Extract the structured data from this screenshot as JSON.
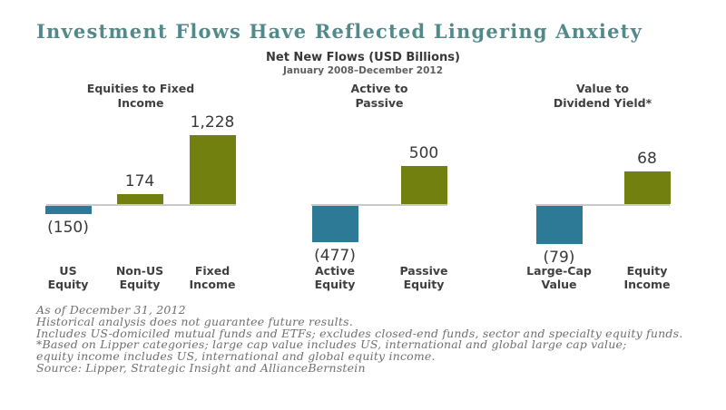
{
  "page": {
    "title": "Investment Flows Have Reflected Lingering Anxiety"
  },
  "colors": {
    "title_teal": "#52898b",
    "bar_negative_teal": "#2d7a96",
    "bar_positive_olive": "#71800f",
    "baseline_gray": "#c9c9c9",
    "text_dark": "#383838",
    "footnote_gray": "#6f6f6f"
  },
  "chart_data": {
    "type": "bar",
    "title": "Net New Flows (USD Billions)",
    "subtitle": "January 2008–December 2012",
    "unit": "USD Billions",
    "legend": "none",
    "grid": "off",
    "groups": [
      {
        "label": "Equities to Fixed Income",
        "label_lines": [
          "Equities to Fixed",
          "Income"
        ],
        "categories": [
          "US Equity",
          "Non-US Equity",
          "Fixed Income"
        ],
        "category_lines": [
          [
            "US",
            "Equity"
          ],
          [
            "Non-US",
            "Equity"
          ],
          [
            "Fixed",
            "Income"
          ]
        ],
        "values": [
          -150,
          174,
          1228
        ],
        "value_labels": [
          "(150)",
          "174",
          "1,228"
        ]
      },
      {
        "label": "Active to Passive",
        "label_lines": [
          "Active to",
          "Passive"
        ],
        "categories": [
          "Active Equity",
          "Passive Equity"
        ],
        "category_lines": [
          [
            "Active",
            "Equity"
          ],
          [
            "Passive",
            "Equity"
          ]
        ],
        "values": [
          -477,
          500
        ],
        "value_labels": [
          "(477)",
          "500"
        ]
      },
      {
        "label": "Value to Dividend Yield*",
        "label_lines": [
          "Value to",
          "Dividend Yield*"
        ],
        "categories": [
          "Large-Cap Value",
          "Equity Income"
        ],
        "category_lines": [
          [
            "Large-Cap",
            "Value"
          ],
          [
            "Equity",
            "Income"
          ]
        ],
        "values": [
          -79,
          68
        ],
        "value_labels": [
          "(79)",
          "68"
        ]
      }
    ]
  },
  "footnotes": [
    "As of December 31, 2012",
    "Historical analysis does not guarantee future results.",
    "Includes US-domiciled mutual funds and ETFs; excludes closed-end funds, sector and specialty equity funds.",
    "*Based on Lipper categories; large cap value includes US, international and global large cap value;",
    "equity income includes US, international and global equity income.",
    "Source: Lipper, Strategic Insight and AllianceBernstein"
  ]
}
